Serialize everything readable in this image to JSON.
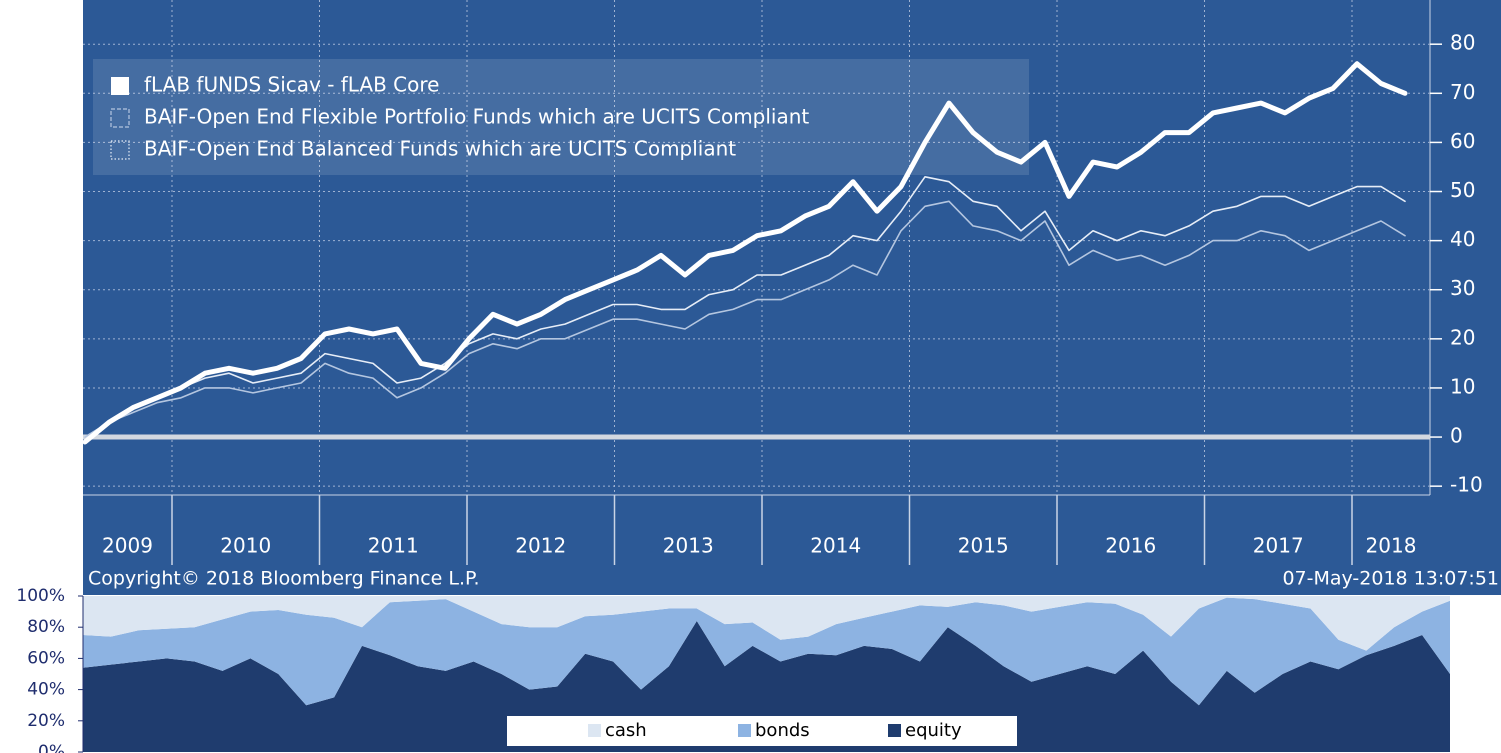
{
  "chart_data": [
    {
      "type": "line",
      "series": [
        {
          "name": "fLAB fUNDS Sicav - fLAB Core",
          "color": "#ffffff",
          "style": "solid",
          "values": [
            -1,
            3,
            6,
            8,
            10,
            13,
            14,
            13,
            14,
            16,
            21,
            22,
            21,
            22,
            15,
            14,
            20,
            25,
            23,
            25,
            28,
            30,
            32,
            34,
            37,
            33,
            37,
            38,
            41,
            42,
            45,
            47,
            52,
            46,
            51,
            60,
            68,
            62,
            58,
            56,
            60,
            49,
            56,
            55,
            58,
            62,
            62,
            66,
            67,
            68,
            66,
            69,
            71,
            76,
            72,
            70
          ]
        },
        {
          "name": "BAIF-Open End Flexible Portfolio Funds which are UCITS Compliant",
          "color": "#b4c6e0",
          "style": "dashed",
          "values": [
            0,
            3,
            5,
            7,
            8,
            10,
            10,
            9,
            10,
            11,
            15,
            13,
            12,
            8,
            10,
            13,
            17,
            19,
            18,
            20,
            20,
            22,
            24,
            24,
            23,
            22,
            25,
            26,
            28,
            28,
            30,
            32,
            35,
            33,
            42,
            47,
            48,
            43,
            42,
            40,
            44,
            35,
            38,
            36,
            37,
            35,
            37,
            40,
            40,
            42,
            41,
            38,
            40,
            42,
            44,
            41
          ]
        },
        {
          "name": "BAIF-Open End Balanced Funds which are UCITS Compliant",
          "color": "#e6edf7",
          "style": "dotted",
          "values": [
            0,
            3,
            6,
            8,
            10,
            12,
            13,
            11,
            12,
            13,
            17,
            16,
            15,
            11,
            12,
            15,
            19,
            21,
            20,
            22,
            23,
            25,
            27,
            27,
            26,
            26,
            29,
            30,
            33,
            33,
            35,
            37,
            41,
            40,
            46,
            53,
            52,
            48,
            47,
            42,
            46,
            38,
            42,
            40,
            42,
            41,
            43,
            46,
            47,
            49,
            49,
            47,
            49,
            51,
            51,
            48
          ]
        }
      ],
      "ylim": [
        -11.8,
        89
      ],
      "yticks": [
        80,
        70,
        60,
        50,
        40,
        30,
        20,
        10,
        0,
        -10
      ],
      "xticks": [
        2009,
        2010,
        2011,
        2012,
        2013,
        2014,
        2015,
        2016,
        2017,
        2018
      ],
      "grid": true,
      "legend": "upper left",
      "copyright": "Copyright© 2018 Bloomberg Finance L.P.",
      "timestamp": "07-May-2018 13:07:51"
    },
    {
      "type": "stacked_area",
      "series": [
        {
          "name": "cash",
          "color": "#dce6f2",
          "values": [
            25,
            26,
            22,
            21,
            20,
            15,
            10,
            9,
            12,
            14,
            20,
            4,
            3,
            2,
            10,
            18,
            20,
            20,
            13,
            12,
            10,
            8,
            8,
            18,
            17,
            28,
            26,
            18,
            14,
            10,
            6,
            7,
            4,
            6,
            10,
            7,
            4,
            5,
            12,
            26,
            8,
            1,
            2,
            5,
            8,
            28,
            35,
            20,
            10,
            3
          ]
        },
        {
          "name": "bonds",
          "color": "#8db3e2",
          "values": [
            21,
            18,
            20,
            19,
            22,
            33,
            30,
            41,
            58,
            51,
            12,
            34,
            42,
            46,
            32,
            32,
            40,
            38,
            24,
            30,
            50,
            37,
            8,
            27,
            15,
            14,
            11,
            20,
            18,
            24,
            36,
            13,
            28,
            39,
            45,
            43,
            41,
            45,
            23,
            29,
            62,
            47,
            60,
            45,
            34,
            19,
            3,
            12,
            15,
            47
          ]
        },
        {
          "name": "equity",
          "color": "#1f3c6e",
          "values": [
            54,
            56,
            58,
            60,
            58,
            52,
            60,
            50,
            30,
            35,
            68,
            62,
            55,
            52,
            58,
            50,
            40,
            42,
            63,
            58,
            40,
            55,
            84,
            55,
            68,
            58,
            63,
            62,
            68,
            66,
            58,
            80,
            68,
            55,
            45,
            50,
            55,
            50,
            65,
            45,
            30,
            52,
            38,
            50,
            58,
            53,
            62,
            68,
            75,
            50
          ]
        }
      ],
      "ylim": [
        0,
        100
      ],
      "yticks": [
        {
          "value": 100,
          "label": "100%"
        },
        {
          "value": 80,
          "label": "80%"
        },
        {
          "value": 60,
          "label": "60%"
        },
        {
          "value": 40,
          "label": "40%"
        },
        {
          "value": 20,
          "label": "20%"
        },
        {
          "value": 0,
          "label": "0%"
        }
      ],
      "legend": "lower center"
    }
  ]
}
